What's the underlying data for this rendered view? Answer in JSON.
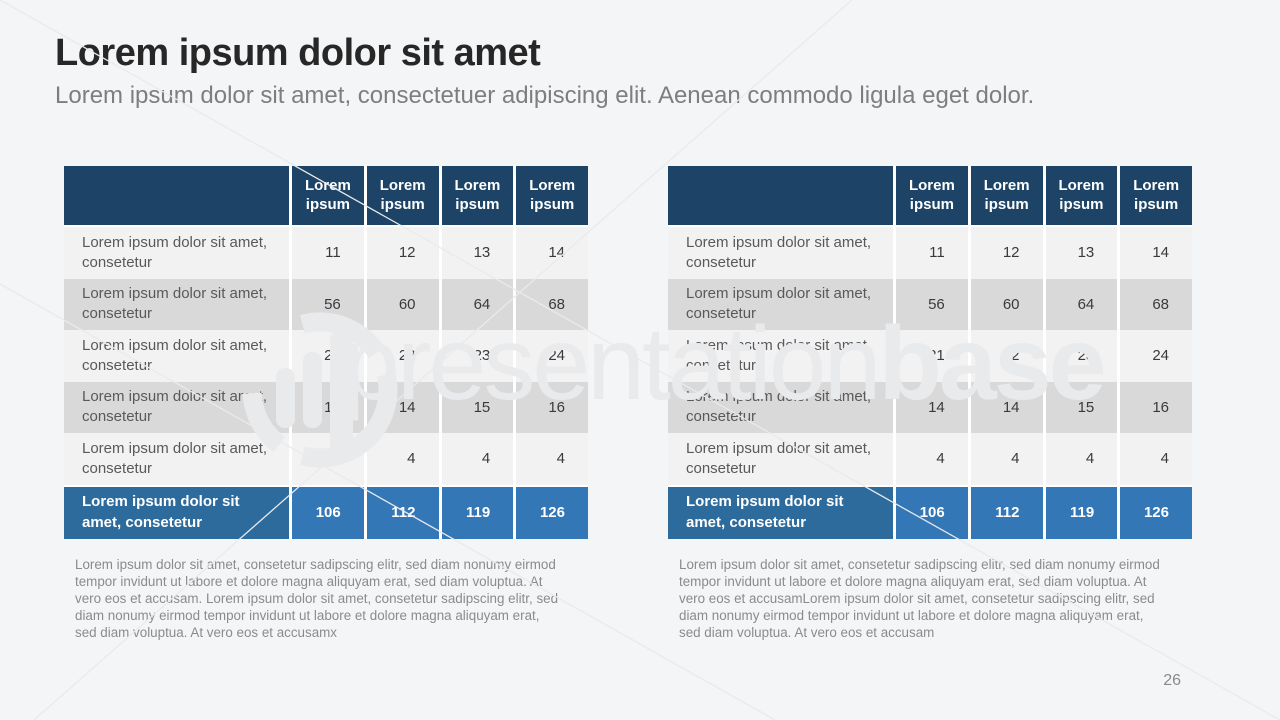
{
  "slide": {
    "title": "Lorem ipsum dolor sit amet",
    "subtitle": "Lorem ipsum dolor sit amet, consectetuer adipiscing elit. Aenean commodo ligula eget dolor.",
    "page_number": "26"
  },
  "watermark": {
    "light": "presentation",
    "bold": "base"
  },
  "colors": {
    "background": "#F4F5F7",
    "header_bg": "#1D4466",
    "row_light": "#F2F2F3",
    "row_dark": "#D9D9DA",
    "total_label_bg": "#2E6B9D",
    "total_value_bg": "#3377B7",
    "watermark": "#E9EAEC"
  },
  "tables": [
    {
      "columns": [
        "Lorem ipsum",
        "Lorem ipsum",
        "Lorem ipsum",
        "Lorem ipsum"
      ],
      "rows": [
        {
          "label": "Lorem ipsum dolor sit amet, consetetur",
          "values": [
            "11",
            "12",
            "13",
            "14"
          ]
        },
        {
          "label": "Lorem ipsum dolor sit amet, consetetur",
          "values": [
            "56",
            "60",
            "64",
            "68"
          ]
        },
        {
          "label": "Lorem ipsum dolor sit amet, consetetur",
          "values": [
            "21",
            "22",
            "23",
            "24"
          ]
        },
        {
          "label": "Lorem ipsum dolor sit amet, consetetur",
          "values": [
            "14",
            "14",
            "15",
            "16"
          ]
        },
        {
          "label": "Lorem ipsum dolor sit amet, consetetur",
          "values": [
            "4",
            "4",
            "4",
            "4"
          ]
        }
      ],
      "total": {
        "label": "Lorem ipsum dolor sit amet, consetetur",
        "values": [
          "106",
          "112",
          "119",
          "126"
        ]
      },
      "footnote": "Lorem ipsum dolor sit amet, consetetur sadipscing elitr, sed diam nonumy eirmod tempor invidunt ut labore et dolore magna aliquyam erat, sed diam voluptua. At vero eos et accusam. Lorem ipsum dolor sit amet, consetetur sadipscing elitr, sed diam nonumy eirmod tempor invidunt ut labore et dolore magna aliquyam erat, sed diam voluptua. At vero eos et accusamx"
    },
    {
      "columns": [
        "Lorem ipsum",
        "Lorem ipsum",
        "Lorem ipsum",
        "Lorem ipsum"
      ],
      "rows": [
        {
          "label": "Lorem ipsum dolor sit amet, consetetur",
          "values": [
            "11",
            "12",
            "13",
            "14"
          ]
        },
        {
          "label": "Lorem ipsum dolor sit amet, consetetur",
          "values": [
            "56",
            "60",
            "64",
            "68"
          ]
        },
        {
          "label": "Lorem ipsum dolor sit amet, consetetur",
          "values": [
            "21",
            "22",
            "23",
            "24"
          ]
        },
        {
          "label": "Lorem ipsum dolor sit amet, consetetur",
          "values": [
            "14",
            "14",
            "15",
            "16"
          ]
        },
        {
          "label": "Lorem ipsum dolor sit amet, consetetur",
          "values": [
            "4",
            "4",
            "4",
            "4"
          ]
        }
      ],
      "total": {
        "label": "Lorem ipsum dolor sit amet, consetetur",
        "values": [
          "106",
          "112",
          "119",
          "126"
        ]
      },
      "footnote": "Lorem ipsum dolor sit amet, consetetur sadipscing elitr, sed diam nonumy eirmod tempor invidunt ut labore et dolore magna aliquyam erat, sed diam voluptua. At vero eos et accusamLorem ipsum dolor sit amet, consetetur sadipscing elitr, sed diam nonumy eirmod tempor invidunt ut labore et dolore magna aliquyam erat, sed diam voluptua. At vero eos et accusam"
    }
  ]
}
